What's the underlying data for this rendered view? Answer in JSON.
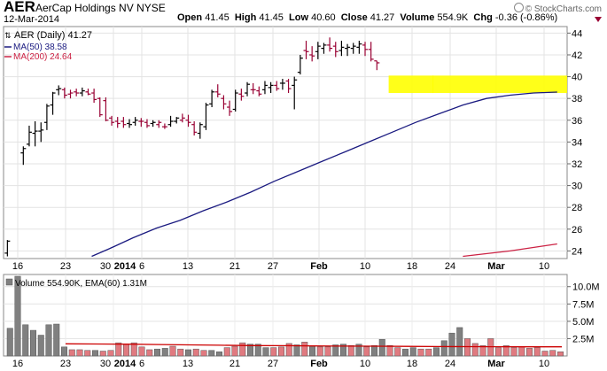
{
  "header": {
    "symbol": "AER",
    "company": "AerCap Holdings NV",
    "exchange": "NYSE",
    "date": "12-Mar-2014",
    "open_label": "Open",
    "open": "41.45",
    "high_label": "High",
    "high": "41.45",
    "low_label": "Low",
    "low": "40.60",
    "close_label": "Close",
    "close": "41.27",
    "volume_label": "Volume",
    "volume": "554.9K",
    "chg_label": "Chg",
    "chg": "-0.36 (-0.86%)",
    "credit": "© StockCharts.com"
  },
  "colors": {
    "up": "#000000",
    "down": "#990033",
    "ma50": "#1a1a80",
    "ma200": "#cc2244",
    "highlight": "#ffff00",
    "vol_up": "#808080",
    "vol_down": "#e07a80",
    "ema_line": "#cc0000"
  },
  "chart_data": [
    {
      "type": "ohlc",
      "legend": [
        "AER (Daily) 41.27",
        "MA(50) 38.58",
        "MA(200) 24.64"
      ],
      "x_tick_labels": [
        "16",
        "23",
        "30",
        "2014",
        "6",
        "13",
        "21",
        "27",
        "Feb",
        "10",
        "18",
        "24",
        "Mar",
        "10"
      ],
      "y_ticks": [
        24,
        26,
        28,
        30,
        32,
        34,
        36,
        38,
        40,
        42,
        44
      ],
      "ylim": [
        23.3,
        44.6
      ],
      "highlight_range": [
        38.5,
        40.1
      ],
      "bars": [
        {
          "o": 23.8,
          "h": 25.0,
          "l": 23.5,
          "c": 24.9,
          "dir": "up"
        },
        {
          "o": 33.0,
          "h": 33.6,
          "l": 31.9,
          "c": 33.4,
          "dir": "up"
        },
        {
          "o": 33.8,
          "h": 35.5,
          "l": 33.6,
          "c": 34.9,
          "dir": "up"
        },
        {
          "o": 34.8,
          "h": 35.9,
          "l": 33.6,
          "c": 35.0,
          "dir": "up"
        },
        {
          "o": 35.0,
          "h": 35.8,
          "l": 34.0,
          "c": 35.1,
          "dir": "up"
        },
        {
          "o": 35.8,
          "h": 37.5,
          "l": 35.1,
          "c": 37.3,
          "dir": "up"
        },
        {
          "o": 37.4,
          "h": 38.6,
          "l": 36.5,
          "c": 38.5,
          "dir": "up"
        },
        {
          "o": 38.8,
          "h": 39.2,
          "l": 38.3,
          "c": 38.9,
          "dir": "up"
        },
        {
          "o": 38.8,
          "h": 39.0,
          "l": 38.0,
          "c": 38.3,
          "dir": "down"
        },
        {
          "o": 38.4,
          "h": 38.8,
          "l": 38.0,
          "c": 38.5,
          "dir": "down"
        },
        {
          "o": 38.6,
          "h": 38.9,
          "l": 38.2,
          "c": 38.5,
          "dir": "down"
        },
        {
          "o": 38.5,
          "h": 39.0,
          "l": 38.2,
          "c": 38.7,
          "dir": "up"
        },
        {
          "o": 38.6,
          "h": 38.9,
          "l": 38.3,
          "c": 38.4,
          "dir": "down"
        },
        {
          "o": 38.5,
          "h": 38.9,
          "l": 37.6,
          "c": 37.9,
          "dir": "down"
        },
        {
          "o": 38.0,
          "h": 38.1,
          "l": 36.3,
          "c": 36.5,
          "dir": "down"
        },
        {
          "o": 37.8,
          "h": 38.1,
          "l": 35.9,
          "c": 36.0,
          "dir": "down"
        },
        {
          "o": 36.2,
          "h": 36.4,
          "l": 35.5,
          "c": 35.8,
          "dir": "down"
        },
        {
          "o": 35.9,
          "h": 36.3,
          "l": 35.3,
          "c": 35.7,
          "dir": "down"
        },
        {
          "o": 35.9,
          "h": 36.3,
          "l": 35.3,
          "c": 35.6,
          "dir": "down"
        },
        {
          "o": 35.7,
          "h": 36.1,
          "l": 35.3,
          "c": 35.6,
          "dir": "up"
        },
        {
          "o": 35.8,
          "h": 36.3,
          "l": 35.5,
          "c": 36.0,
          "dir": "up"
        },
        {
          "o": 35.9,
          "h": 36.2,
          "l": 35.4,
          "c": 35.9,
          "dir": "down"
        },
        {
          "o": 35.8,
          "h": 36.1,
          "l": 35.3,
          "c": 35.5,
          "dir": "down"
        },
        {
          "o": 35.7,
          "h": 36.0,
          "l": 35.4,
          "c": 35.8,
          "dir": "up"
        },
        {
          "o": 35.6,
          "h": 36.0,
          "l": 35.3,
          "c": 35.8,
          "dir": "down"
        },
        {
          "o": 35.4,
          "h": 35.7,
          "l": 35.2,
          "c": 35.4,
          "dir": "down"
        },
        {
          "o": 35.6,
          "h": 36.4,
          "l": 35.4,
          "c": 35.9,
          "dir": "up"
        },
        {
          "o": 35.9,
          "h": 36.3,
          "l": 35.7,
          "c": 36.2,
          "dir": "up"
        },
        {
          "o": 36.0,
          "h": 36.6,
          "l": 35.8,
          "c": 36.2,
          "dir": "down"
        },
        {
          "o": 36.0,
          "h": 36.5,
          "l": 35.4,
          "c": 35.8,
          "dir": "down"
        },
        {
          "o": 35.6,
          "h": 35.9,
          "l": 34.6,
          "c": 34.9,
          "dir": "down"
        },
        {
          "o": 34.8,
          "h": 35.8,
          "l": 34.3,
          "c": 35.6,
          "dir": "up"
        },
        {
          "o": 35.4,
          "h": 37.6,
          "l": 35.1,
          "c": 37.4,
          "dir": "up"
        },
        {
          "o": 37.5,
          "h": 38.8,
          "l": 37.2,
          "c": 38.6,
          "dir": "up"
        },
        {
          "o": 38.6,
          "h": 39.3,
          "l": 38.1,
          "c": 38.4,
          "dir": "down"
        },
        {
          "o": 38.0,
          "h": 38.3,
          "l": 37.0,
          "c": 37.5,
          "dir": "down"
        },
        {
          "o": 37.2,
          "h": 37.8,
          "l": 36.4,
          "c": 36.8,
          "dir": "down"
        },
        {
          "o": 37.0,
          "h": 38.8,
          "l": 36.8,
          "c": 38.5,
          "dir": "up"
        },
        {
          "o": 38.4,
          "h": 38.9,
          "l": 37.8,
          "c": 38.2,
          "dir": "down"
        },
        {
          "o": 38.5,
          "h": 39.5,
          "l": 38.2,
          "c": 39.3,
          "dir": "up"
        },
        {
          "o": 38.8,
          "h": 39.4,
          "l": 38.4,
          "c": 38.8,
          "dir": "down"
        },
        {
          "o": 38.7,
          "h": 39.1,
          "l": 38.2,
          "c": 38.4,
          "dir": "down"
        },
        {
          "o": 38.8,
          "h": 39.6,
          "l": 38.4,
          "c": 39.2,
          "dir": "up"
        },
        {
          "o": 39.0,
          "h": 39.5,
          "l": 38.5,
          "c": 39.2,
          "dir": "up"
        },
        {
          "o": 39.2,
          "h": 39.6,
          "l": 38.7,
          "c": 38.9,
          "dir": "down"
        },
        {
          "o": 39.4,
          "h": 39.8,
          "l": 38.8,
          "c": 39.4,
          "dir": "up"
        },
        {
          "o": 39.6,
          "h": 39.8,
          "l": 38.5,
          "c": 38.9,
          "dir": "down"
        },
        {
          "o": 39.2,
          "h": 40.0,
          "l": 37.0,
          "c": 39.7,
          "dir": "up"
        },
        {
          "o": 40.4,
          "h": 42.0,
          "l": 40.2,
          "c": 41.7,
          "dir": "up"
        },
        {
          "o": 42.4,
          "h": 43.3,
          "l": 41.6,
          "c": 42.3,
          "dir": "down"
        },
        {
          "o": 42.0,
          "h": 42.8,
          "l": 41.4,
          "c": 41.9,
          "dir": "down"
        },
        {
          "o": 42.3,
          "h": 43.2,
          "l": 41.6,
          "c": 42.8,
          "dir": "up"
        },
        {
          "o": 42.6,
          "h": 43.1,
          "l": 42.1,
          "c": 42.9,
          "dir": "up"
        },
        {
          "o": 42.9,
          "h": 43.6,
          "l": 42.3,
          "c": 42.6,
          "dir": "down"
        },
        {
          "o": 42.8,
          "h": 43.2,
          "l": 41.8,
          "c": 42.3,
          "dir": "down"
        },
        {
          "o": 42.4,
          "h": 43.3,
          "l": 41.9,
          "c": 42.7,
          "dir": "up"
        },
        {
          "o": 42.6,
          "h": 43.0,
          "l": 41.9,
          "c": 42.7,
          "dir": "up"
        },
        {
          "o": 42.6,
          "h": 43.1,
          "l": 42.1,
          "c": 42.8,
          "dir": "up"
        },
        {
          "o": 42.7,
          "h": 43.3,
          "l": 42.1,
          "c": 43.0,
          "dir": "up"
        },
        {
          "o": 42.9,
          "h": 43.2,
          "l": 41.9,
          "c": 42.5,
          "dir": "down"
        },
        {
          "o": 42.5,
          "h": 43.2,
          "l": 41.4,
          "c": 41.6,
          "dir": "down"
        },
        {
          "o": 41.45,
          "h": 41.45,
          "l": 40.6,
          "c": 41.27,
          "dir": "down"
        }
      ],
      "ma50": [
        {
          "i": 13,
          "v": 23.5
        },
        {
          "i": 16,
          "v": 24.2
        },
        {
          "i": 20,
          "v": 25.2
        },
        {
          "i": 24,
          "v": 26.1
        },
        {
          "i": 28,
          "v": 26.8
        },
        {
          "i": 32,
          "v": 27.7
        },
        {
          "i": 36,
          "v": 28.5
        },
        {
          "i": 40,
          "v": 29.4
        },
        {
          "i": 44,
          "v": 30.4
        },
        {
          "i": 48,
          "v": 31.3
        },
        {
          "i": 52,
          "v": 32.2
        },
        {
          "i": 56,
          "v": 33.1
        },
        {
          "i": 60,
          "v": 34.0
        },
        {
          "i": 64,
          "v": 34.9
        },
        {
          "i": 68,
          "v": 35.8
        },
        {
          "i": 72,
          "v": 36.6
        },
        {
          "i": 76,
          "v": 37.4
        },
        {
          "i": 80,
          "v": 38.0
        },
        {
          "i": 84,
          "v": 38.3
        },
        {
          "i": 88,
          "v": 38.5
        },
        {
          "i": 92,
          "v": 38.58
        }
      ],
      "ma200": [
        {
          "i": 76,
          "v": 23.5
        },
        {
          "i": 84,
          "v": 24.0
        },
        {
          "i": 92,
          "v": 24.64
        }
      ]
    },
    {
      "type": "bar",
      "legend": "Volume 554.90K, EMA(60) 1.31M",
      "y_tick_labels": [
        "2.5M",
        "5.0M",
        "7.5M",
        "10.0M"
      ],
      "y_ticks": [
        2.5,
        5.0,
        7.5,
        10.0
      ],
      "ylim": [
        0,
        11.5
      ],
      "values": [
        4.0,
        11.5,
        4.5,
        3.7,
        3.0,
        4.5,
        4.6,
        1.3,
        0.9,
        0.9,
        0.8,
        0.8,
        0.7,
        0.8,
        1.9,
        1.7,
        1.9,
        1.3,
        0.9,
        1.0,
        1.1,
        1.4,
        1.0,
        0.9,
        1.0,
        0.8,
        0.8,
        0.6,
        1.2,
        1.4,
        1.9,
        1.7,
        1.7,
        1.2,
        1.2,
        1.3,
        1.8,
        1.6,
        2.0,
        1.4,
        1.3,
        1.3,
        1.6,
        1.7,
        1.5,
        1.7,
        1.3,
        1.5,
        2.4,
        1.5,
        1.2,
        1.0,
        1.2,
        1.0,
        1.0,
        1.2,
        2.2,
        3.3,
        4.1,
        2.5,
        1.8,
        1.5,
        2.5,
        1.2,
        1.5,
        1.2,
        1.3,
        1.1,
        1.2,
        0.7,
        0.8,
        0.6
      ],
      "ema60": [
        1.75,
        1.72,
        1.7,
        1.65,
        1.6,
        1.55,
        1.5,
        1.48,
        1.45,
        1.42,
        1.4,
        1.38,
        1.36,
        1.34,
        1.33,
        1.32,
        1.31
      ]
    }
  ]
}
